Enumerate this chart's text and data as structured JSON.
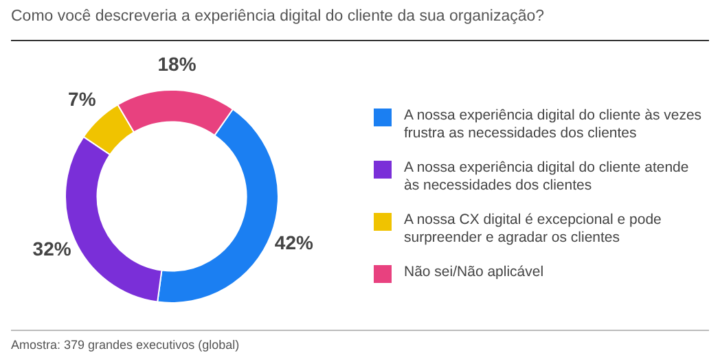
{
  "chart_data": {
    "type": "donut",
    "title": "Como você descreveria a experiência digital do cliente da sua organização?",
    "categories": [
      "A nossa experiência digital do cliente às vezes frustra as necessidades dos clientes",
      "A nossa experiência digital do cliente atende às necessidades dos clientes",
      "A nossa CX digital é excepcional e pode surpreender e agradar os clientes",
      "Não sei/Não aplicável"
    ],
    "values": [
      42,
      32,
      7,
      18
    ],
    "value_labels": [
      "42%",
      "32%",
      "7%",
      "18%"
    ],
    "colors": [
      "#1b7ff2",
      "#7a2fd8",
      "#f0c300",
      "#e8417f"
    ],
    "legend": "right",
    "annotations": [
      "Amostra: 379 grandes executivos (global)"
    ]
  }
}
